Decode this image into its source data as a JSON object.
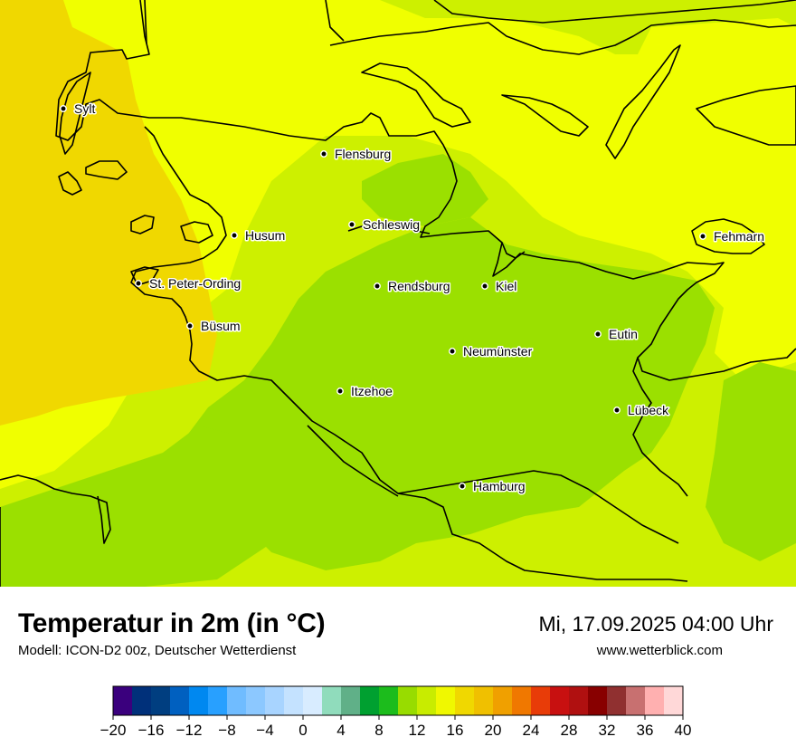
{
  "title": "Temperatur in 2m (in °C)",
  "subtitle": "Modell: ICON-D2 00z, Deutscher Wetterdienst",
  "datetime": "Mi, 17.09.2025 04:00 Uhr",
  "website": "www.wetterblick.com",
  "cities": [
    {
      "name": "Sylt"
    },
    {
      "name": "Flensburg"
    },
    {
      "name": "Husum"
    },
    {
      "name": "Schleswig"
    },
    {
      "name": "Fehmarn"
    },
    {
      "name": "St. Peter-Ording"
    },
    {
      "name": "Rendsburg"
    },
    {
      "name": "Kiel"
    },
    {
      "name": "Büsum"
    },
    {
      "name": "Eutin"
    },
    {
      "name": "Neumünster"
    },
    {
      "name": "Itzehoe"
    },
    {
      "name": "Lübeck"
    },
    {
      "name": "Hamburg"
    }
  ],
  "colorbar": {
    "min": -20,
    "max": 40,
    "step": 2,
    "tick_labels": [
      "−20",
      "−16",
      "−12",
      "−8",
      "−4",
      "0",
      "4",
      "8",
      "12",
      "16",
      "20",
      "24",
      "28",
      "32",
      "36",
      "40"
    ],
    "colors": [
      "#3a007d",
      "#00307a",
      "#003e80",
      "#0060c0",
      "#0088f0",
      "#28a0ff",
      "#70bcff",
      "#8cc8ff",
      "#a8d4ff",
      "#c4e2ff",
      "#d8ecff",
      "#90dcbc",
      "#60b088",
      "#00a030",
      "#1cbc1c",
      "#98dc00",
      "#c8ec00",
      "#f0f800",
      "#f0d800",
      "#f0c000",
      "#f0a000",
      "#f07800",
      "#e83c08",
      "#c81010",
      "#b01010",
      "#880000",
      "#903030",
      "#c87070",
      "#ffb0b0",
      "#ffd8d8"
    ]
  },
  "temperature_zones": {
    "orange_coastal": {
      "range_c": [
        16,
        18
      ],
      "color": "#f0d800"
    },
    "yellow": {
      "range_c": [
        14,
        16
      ],
      "color": "#f0ff00"
    },
    "yellow_green": {
      "range_c": [
        12,
        14
      ],
      "color": "#cdf000"
    },
    "green": {
      "range_c": [
        10,
        12
      ],
      "color": "#9be000"
    }
  }
}
